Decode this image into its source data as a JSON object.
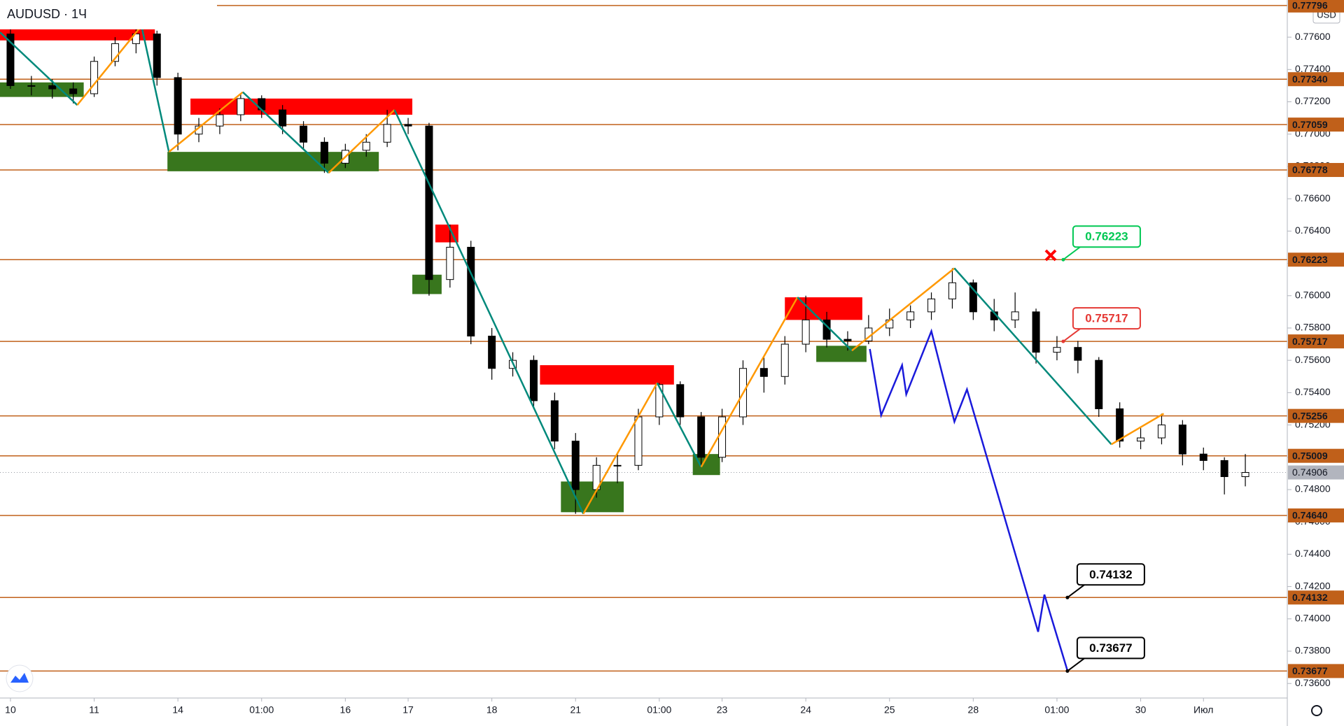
{
  "chart_data": {
    "type": "candlestick",
    "title": "AUDUSD · 1Ч",
    "currency": "USD",
    "categories": [
      "10",
      null,
      null,
      null,
      "11",
      null,
      null,
      null,
      "14",
      null,
      null,
      null,
      "01:00",
      null,
      null,
      null,
      "16",
      null,
      null,
      "17",
      null,
      null,
      null,
      "18",
      null,
      null,
      null,
      "21",
      null,
      null,
      null,
      "01:00",
      null,
      null,
      "23",
      null,
      null,
      null,
      "24",
      null,
      null,
      null,
      "25",
      null,
      null,
      null,
      "28",
      null,
      null,
      null,
      "01:00",
      null,
      null,
      null,
      "30",
      null,
      null,
      "Июл",
      null,
      null
    ],
    "candles": [
      [
        0.7762,
        0.7765,
        0.7728,
        0.773
      ],
      [
        0.773,
        0.7736,
        0.7724,
        0.773
      ],
      [
        0.773,
        0.7734,
        0.7722,
        0.7728
      ],
      [
        0.7728,
        0.7732,
        0.7719,
        0.7725
      ],
      [
        0.7725,
        0.7748,
        0.7723,
        0.7745
      ],
      [
        0.7745,
        0.776,
        0.7742,
        0.7756
      ],
      [
        0.7756,
        0.7767,
        0.775,
        0.7762
      ],
      [
        0.7762,
        0.7764,
        0.773,
        0.7735
      ],
      [
        0.7735,
        0.7738,
        0.769,
        0.77
      ],
      [
        0.77,
        0.771,
        0.7695,
        0.7705
      ],
      [
        0.7705,
        0.7716,
        0.77,
        0.7712
      ],
      [
        0.7712,
        0.7725,
        0.7708,
        0.7722
      ],
      [
        0.7722,
        0.7724,
        0.771,
        0.7715
      ],
      [
        0.7715,
        0.7718,
        0.77,
        0.7705
      ],
      [
        0.7705,
        0.7708,
        0.769,
        0.7695
      ],
      [
        0.7695,
        0.7698,
        0.7676,
        0.7682
      ],
      [
        0.7682,
        0.7694,
        0.7679,
        0.769
      ],
      [
        0.769,
        0.77,
        0.7686,
        0.7695
      ],
      [
        0.7695,
        0.7715,
        0.7692,
        0.7706
      ],
      [
        0.7706,
        0.771,
        0.77,
        0.7705
      ],
      [
        0.7705,
        0.7707,
        0.76,
        0.761
      ],
      [
        0.761,
        0.7644,
        0.7605,
        0.763
      ],
      [
        0.763,
        0.7634,
        0.757,
        0.7575
      ],
      [
        0.7575,
        0.758,
        0.7548,
        0.7555
      ],
      [
        0.7555,
        0.7565,
        0.755,
        0.756
      ],
      [
        0.756,
        0.7563,
        0.753,
        0.7535
      ],
      [
        0.7535,
        0.754,
        0.7505,
        0.751
      ],
      [
        0.751,
        0.7515,
        0.7465,
        0.748
      ],
      [
        0.748,
        0.75,
        0.7475,
        0.7495
      ],
      [
        0.7495,
        0.7502,
        0.7484,
        0.7495
      ],
      [
        0.7495,
        0.753,
        0.7492,
        0.7525
      ],
      [
        0.7525,
        0.7546,
        0.752,
        0.7545
      ],
      [
        0.7545,
        0.7547,
        0.752,
        0.7525
      ],
      [
        0.7525,
        0.7528,
        0.7494,
        0.75
      ],
      [
        0.75,
        0.753,
        0.7497,
        0.7525
      ],
      [
        0.7525,
        0.756,
        0.752,
        0.7555
      ],
      [
        0.7555,
        0.7562,
        0.754,
        0.755
      ],
      [
        0.755,
        0.7575,
        0.7545,
        0.757
      ],
      [
        0.757,
        0.76,
        0.7565,
        0.7585
      ],
      [
        0.7585,
        0.759,
        0.7568,
        0.7573
      ],
      [
        0.7573,
        0.7578,
        0.7566,
        0.7572
      ],
      [
        0.7572,
        0.7588,
        0.757,
        0.758
      ],
      [
        0.758,
        0.7592,
        0.7575,
        0.7585
      ],
      [
        0.7585,
        0.7594,
        0.758,
        0.759
      ],
      [
        0.759,
        0.7602,
        0.7585,
        0.7598
      ],
      [
        0.7598,
        0.7617,
        0.7592,
        0.7608
      ],
      [
        0.7608,
        0.761,
        0.7585,
        0.759
      ],
      [
        0.759,
        0.7598,
        0.7578,
        0.7585
      ],
      [
        0.7585,
        0.7602,
        0.758,
        0.759
      ],
      [
        0.759,
        0.7592,
        0.7558,
        0.7565
      ],
      [
        0.7565,
        0.7575,
        0.756,
        0.7568
      ],
      [
        0.7568,
        0.7572,
        0.7552,
        0.756
      ],
      [
        0.756,
        0.7562,
        0.7525,
        0.753
      ],
      [
        0.753,
        0.7534,
        0.7506,
        0.751
      ],
      [
        0.751,
        0.7518,
        0.7505,
        0.7512
      ],
      [
        0.7512,
        0.7527,
        0.7508,
        0.752
      ],
      [
        0.752,
        0.7523,
        0.7495,
        0.7502
      ],
      [
        0.7502,
        0.7506,
        0.7492,
        0.7498
      ],
      [
        0.7498,
        0.75,
        0.7477,
        0.7488
      ],
      [
        0.7488,
        0.7502,
        0.7482,
        0.74906
      ]
    ],
    "up_color": "#ffffff",
    "down_color": "#000000",
    "ylim": [
      0.7351,
      0.7783
    ],
    "yticks": [
      {
        "value": 0.736,
        "label": "0.73600"
      },
      {
        "value": 0.738,
        "label": "0.73800"
      },
      {
        "value": 0.74,
        "label": "0.74000"
      },
      {
        "value": 0.742,
        "label": "0.74200"
      },
      {
        "value": 0.744,
        "label": "0.74400"
      },
      {
        "value": 0.746,
        "label": "0.74600"
      },
      {
        "value": 0.748,
        "label": "0.74800"
      },
      {
        "value": 0.75,
        "label": "0.75000"
      },
      {
        "value": 0.752,
        "label": "0.75200"
      },
      {
        "value": 0.754,
        "label": "0.75400"
      },
      {
        "value": 0.756,
        "label": "0.75600"
      },
      {
        "value": 0.758,
        "label": "0.75800"
      },
      {
        "value": 0.76,
        "label": "0.76000"
      },
      {
        "value": 0.762,
        "label": "0.76200"
      },
      {
        "value": 0.764,
        "label": "0.76400"
      },
      {
        "value": 0.766,
        "label": "0.76600"
      },
      {
        "value": 0.768,
        "label": "0.76800"
      },
      {
        "value": 0.77,
        "label": "0.77000"
      },
      {
        "value": 0.772,
        "label": "0.77200"
      },
      {
        "value": 0.774,
        "label": "0.77400"
      },
      {
        "value": 0.776,
        "label": "0.77600"
      }
    ],
    "levels": [
      {
        "value": 0.77796,
        "label": "0.77796"
      },
      {
        "value": 0.7734,
        "label": "0.77340"
      },
      {
        "value": 0.77059,
        "label": "0.77059"
      },
      {
        "value": 0.76778,
        "label": "0.76778"
      },
      {
        "value": 0.76223,
        "label": "0.76223"
      },
      {
        "value": 0.75717,
        "label": "0.75717"
      },
      {
        "value": 0.75256,
        "label": "0.75256"
      },
      {
        "value": 0.75009,
        "label": "0.75009"
      },
      {
        "value": 0.7464,
        "label": "0.74640"
      },
      {
        "value": 0.74132,
        "label": "0.74132"
      },
      {
        "value": 0.73677,
        "label": "0.73677"
      }
    ],
    "level_color": "#c0601a",
    "last_price": {
      "value": 0.74906,
      "label": "0.74906"
    },
    "zones": [
      {
        "from": -0.5,
        "to": 6.9,
        "low": 0.7758,
        "high": 0.7766,
        "color": "#ff0000"
      },
      {
        "from": -0.5,
        "to": 3.5,
        "low": 0.7723,
        "high": 0.7732,
        "color": "#38761d"
      },
      {
        "from": 8.6,
        "to": 19.2,
        "low": 0.7712,
        "high": 0.7722,
        "color": "#ff0000"
      },
      {
        "from": 7.5,
        "to": 17.6,
        "low": 0.7677,
        "high": 0.7689,
        "color": "#38761d"
      },
      {
        "from": 20.3,
        "to": 21.4,
        "low": 0.7633,
        "high": 0.7644,
        "color": "#ff0000"
      },
      {
        "from": 19.2,
        "to": 20.6,
        "low": 0.7601,
        "high": 0.7613,
        "color": "#38761d"
      },
      {
        "from": 25.3,
        "to": 31.7,
        "low": 0.7545,
        "high": 0.7557,
        "color": "#ff0000"
      },
      {
        "from": 26.3,
        "to": 29.3,
        "low": 0.7466,
        "high": 0.7485,
        "color": "#38761d"
      },
      {
        "from": 32.6,
        "to": 33.9,
        "low": 0.7489,
        "high": 0.7502,
        "color": "#38761d"
      },
      {
        "from": 37.0,
        "to": 40.7,
        "low": 0.7585,
        "high": 0.7599,
        "color": "#ff0000"
      },
      {
        "from": 38.5,
        "to": 40.9,
        "low": 0.7559,
        "high": 0.7569,
        "color": "#38761d"
      }
    ],
    "zigzag": {
      "x": [
        -0.5,
        3.19,
        6.26,
        7.57,
        11.1,
        15.2,
        18.35,
        27.37,
        30.9,
        33.0,
        37.6,
        40.2,
        45.1,
        52.6,
        55.1
      ],
      "y": [
        0.7763,
        0.7718,
        0.7767,
        0.7689,
        0.7726,
        0.7676,
        0.7715,
        0.7465,
        0.7546,
        0.7494,
        0.7599,
        0.7566,
        0.7617,
        0.7508,
        0.7527
      ],
      "up_color": "#ff9800",
      "down_color": "#00897b"
    },
    "projection": {
      "x": [
        41.06,
        41.6,
        42.6,
        42.8,
        44.0,
        45.1,
        45.7,
        49.1,
        49.4,
        50.5
      ],
      "y": [
        0.7567,
        0.7526,
        0.7557,
        0.7539,
        0.7578,
        0.7522,
        0.7542,
        0.7392,
        0.7415,
        0.7368
      ],
      "color": "#1a1adb"
    },
    "callouts": [
      {
        "text": "0.76223",
        "x": 50.3,
        "y": 0.76223,
        "color": "#00c853"
      },
      {
        "text": "0.75717",
        "x": 50.3,
        "y": 0.75717,
        "color": "#e53935"
      },
      {
        "text": "0.74132",
        "x": 50.5,
        "y": 0.74132,
        "color": "#000000"
      },
      {
        "text": "0.73677",
        "x": 50.5,
        "y": 0.73677,
        "color": "#000000"
      }
    ],
    "cancel_marker": {
      "x": 49.7,
      "y": 0.7625,
      "color": "#ff0000"
    }
  }
}
